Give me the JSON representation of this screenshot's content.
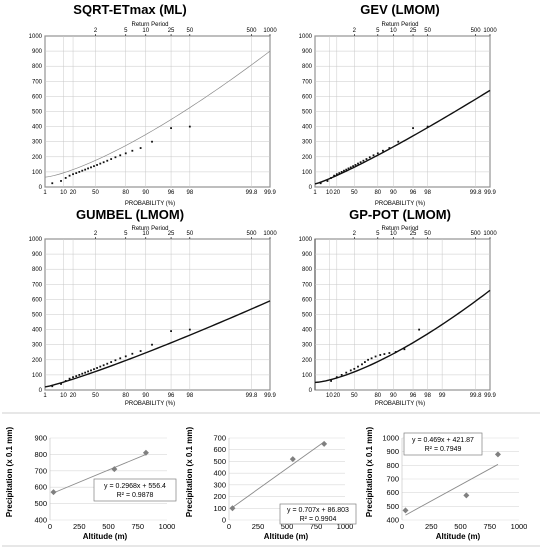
{
  "figure": {
    "section_divider_color": "#cfcfcf",
    "grid_color": "#c8c8c8",
    "point_color": "#111111",
    "scatter_marker_color": "#808080",
    "trend_color": "#8c8c8c"
  },
  "chart_data": [
    {
      "type": "scatter",
      "title": "SQRT-ETmax (ML)",
      "xlabel": "PROBABILITY (%)",
      "top_axis_label": "Return Period",
      "ylim": [
        0,
        1000
      ],
      "y_ticks": [
        0,
        100,
        200,
        300,
        400,
        500,
        600,
        700,
        800,
        900,
        1000
      ],
      "prob_ticks": [
        "1",
        "10",
        "20",
        "50",
        "80",
        "90",
        "96",
        "98",
        "99.8",
        "99.9"
      ],
      "return_period_ticks": [
        "2",
        "5",
        "10",
        "25",
        "50",
        "500",
        "1000"
      ],
      "fitted_curve": {
        "style": "thin-gray",
        "start": 65,
        "end": 900
      },
      "points": [
        [
          3,
          25
        ],
        [
          8,
          40
        ],
        [
          12,
          60
        ],
        [
          16,
          75
        ],
        [
          20,
          85
        ],
        [
          24,
          92
        ],
        [
          28,
          100
        ],
        [
          32,
          108
        ],
        [
          36,
          115
        ],
        [
          40,
          123
        ],
        [
          44,
          130
        ],
        [
          48,
          138
        ],
        [
          52,
          146
        ],
        [
          56,
          155
        ],
        [
          60,
          164
        ],
        [
          64,
          174
        ],
        [
          68,
          185
        ],
        [
          72,
          197
        ],
        [
          76,
          210
        ],
        [
          80,
          223
        ],
        [
          84,
          240
        ],
        [
          88,
          258
        ],
        [
          92,
          300
        ],
        [
          96,
          390
        ],
        [
          98,
          400
        ]
      ]
    },
    {
      "type": "scatter",
      "title": "GEV (LMOM)",
      "xlabel": "PROBABILITY (%)",
      "top_axis_label": "Return Period",
      "ylim": [
        0,
        1000
      ],
      "y_ticks": [
        0,
        100,
        200,
        300,
        400,
        500,
        600,
        700,
        800,
        900,
        1000
      ],
      "prob_ticks": [
        "1",
        "10",
        "20",
        "50",
        "80",
        "90",
        "96",
        "98",
        "99.8",
        "99.9"
      ],
      "return_period_ticks": [
        "2",
        "5",
        "10",
        "25",
        "50",
        "500",
        "1000"
      ],
      "fitted_curve": {
        "style": "thick-black",
        "start": 20,
        "end": 640
      },
      "points": [
        [
          3,
          25
        ],
        [
          8,
          40
        ],
        [
          12,
          60
        ],
        [
          16,
          75
        ],
        [
          20,
          85
        ],
        [
          24,
          92
        ],
        [
          28,
          100
        ],
        [
          32,
          108
        ],
        [
          36,
          115
        ],
        [
          40,
          123
        ],
        [
          44,
          130
        ],
        [
          48,
          138
        ],
        [
          52,
          146
        ],
        [
          56,
          155
        ],
        [
          60,
          164
        ],
        [
          64,
          174
        ],
        [
          68,
          185
        ],
        [
          72,
          197
        ],
        [
          76,
          210
        ],
        [
          80,
          223
        ],
        [
          84,
          240
        ],
        [
          88,
          258
        ],
        [
          92,
          300
        ],
        [
          96,
          390
        ],
        [
          98,
          400
        ]
      ]
    },
    {
      "type": "scatter",
      "title": "GUMBEL (LMOM)",
      "xlabel": "PROBABILITY (%)",
      "top_axis_label": "Return Period",
      "ylim": [
        0,
        1000
      ],
      "y_ticks": [
        0,
        100,
        200,
        300,
        400,
        500,
        600,
        700,
        800,
        900,
        1000
      ],
      "prob_ticks": [
        "1",
        "10",
        "20",
        "50",
        "80",
        "90",
        "96",
        "98",
        "99.8",
        "99.9"
      ],
      "return_period_ticks": [
        "2",
        "5",
        "10",
        "25",
        "50",
        "500",
        "1000"
      ],
      "fitted_curve": {
        "style": "thick-black",
        "start": 20,
        "end": 590
      },
      "points": [
        [
          3,
          25
        ],
        [
          8,
          40
        ],
        [
          12,
          60
        ],
        [
          16,
          75
        ],
        [
          20,
          85
        ],
        [
          24,
          92
        ],
        [
          28,
          100
        ],
        [
          32,
          108
        ],
        [
          36,
          115
        ],
        [
          40,
          123
        ],
        [
          44,
          130
        ],
        [
          48,
          138
        ],
        [
          52,
          146
        ],
        [
          56,
          155
        ],
        [
          60,
          164
        ],
        [
          64,
          174
        ],
        [
          68,
          185
        ],
        [
          72,
          197
        ],
        [
          76,
          210
        ],
        [
          80,
          223
        ],
        [
          84,
          240
        ],
        [
          88,
          258
        ],
        [
          92,
          300
        ],
        [
          96,
          390
        ],
        [
          98,
          400
        ]
      ]
    },
    {
      "type": "scatter",
      "title": "GP-POT (LMOM)",
      "xlabel": "PROBABILITY (%)",
      "top_axis_label": "Return Period",
      "ylim": [
        0,
        1000
      ],
      "y_ticks": [
        0,
        100,
        200,
        300,
        400,
        500,
        600,
        700,
        800,
        900,
        1000
      ],
      "prob_ticks": [
        "10",
        "20",
        "50",
        "80",
        "90",
        "96",
        "98",
        "99",
        "99.8",
        "99.9"
      ],
      "return_period_ticks": [
        "2",
        "5",
        "10",
        "25",
        "50",
        "500",
        "1000"
      ],
      "fitted_curve": {
        "style": "thick-black",
        "start": 50,
        "end": 660
      },
      "points": [
        [
          12,
          60
        ],
        [
          20,
          85
        ],
        [
          28,
          100
        ],
        [
          36,
          115
        ],
        [
          44,
          130
        ],
        [
          50,
          140
        ],
        [
          56,
          155
        ],
        [
          62,
          170
        ],
        [
          66,
          185
        ],
        [
          70,
          200
        ],
        [
          74,
          210
        ],
        [
          78,
          222
        ],
        [
          82,
          232
        ],
        [
          85,
          238
        ],
        [
          88,
          245
        ],
        [
          91,
          252
        ],
        [
          94,
          270
        ],
        [
          97,
          400
        ]
      ]
    },
    {
      "type": "scatter",
      "title": "",
      "xlabel": "Altitude (m)",
      "ylabel": "Precipitation (x 0.1 mm)",
      "xlim": [
        0,
        1000
      ],
      "ylim": [
        400,
        900
      ],
      "x_ticks": [
        "0",
        "250",
        "500",
        "750",
        "1000"
      ],
      "y_ticks": [
        "400",
        "500",
        "600",
        "700",
        "800",
        "900"
      ],
      "points": [
        [
          30,
          570
        ],
        [
          550,
          710
        ],
        [
          820,
          810
        ]
      ],
      "trendline": {
        "slope": 0.2968,
        "intercept": 556.4
      },
      "equation": "y = 0.2968x + 556.4",
      "r_squared": "R² = 0.9878"
    },
    {
      "type": "scatter",
      "title": "",
      "xlabel": "Altitude (m)",
      "ylabel": "Precipitation (x 0.1 mm)",
      "xlim": [
        0,
        1000
      ],
      "ylim": [
        0,
        700
      ],
      "x_ticks": [
        "0",
        "250",
        "500",
        "750",
        "1000"
      ],
      "y_ticks": [
        "0",
        "100",
        "200",
        "300",
        "400",
        "500",
        "600",
        "700"
      ],
      "points": [
        [
          30,
          100
        ],
        [
          550,
          520
        ],
        [
          820,
          650
        ]
      ],
      "trendline": {
        "slope": 0.707,
        "intercept": 86.803
      },
      "equation": "y = 0.707x + 86.803",
      "r_squared": "R² = 0.9904"
    },
    {
      "type": "scatter",
      "title": "",
      "xlabel": "Altitude (m)",
      "ylabel": "Precipitation (x 0.1 mm)",
      "xlim": [
        0,
        1000
      ],
      "ylim": [
        400,
        1000
      ],
      "x_ticks": [
        "0",
        "250",
        "500",
        "750",
        "1000"
      ],
      "y_ticks": [
        "400",
        "500",
        "600",
        "700",
        "800",
        "900",
        "1000"
      ],
      "points": [
        [
          30,
          470
        ],
        [
          550,
          580
        ],
        [
          820,
          880
        ]
      ],
      "trendline": {
        "slope": 0.469,
        "intercept": 421.87
      },
      "equation": "y = 0.469x + 421.87",
      "r_squared": "R² = 0.7949"
    }
  ]
}
